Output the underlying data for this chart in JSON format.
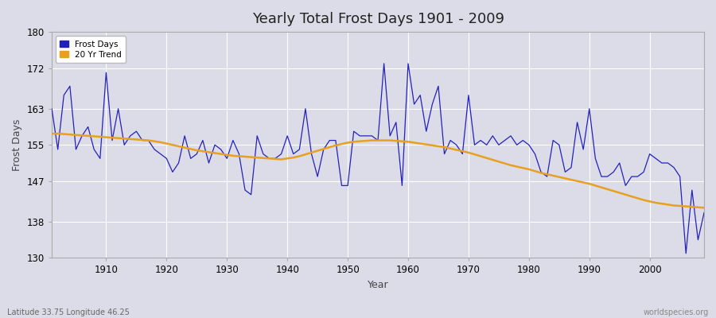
{
  "title": "Yearly Total Frost Days 1901 - 2009",
  "xlabel": "Year",
  "ylabel": "Frost Days",
  "legend_label_blue": "Frost Days",
  "legend_label_orange": "20 Yr Trend",
  "ylim": [
    130,
    180
  ],
  "yticks": [
    130,
    138,
    147,
    155,
    163,
    172,
    180
  ],
  "xlim": [
    1901,
    2009
  ],
  "footnote_left": "Latitude 33.75 Longitude 46.25",
  "footnote_right": "worldspecies.org",
  "background_color": "#dcdce8",
  "grid_color": "#ffffff",
  "line_color_blue": "#2222bb",
  "line_color_orange": "#e8a020",
  "years": [
    1901,
    1902,
    1903,
    1904,
    1905,
    1906,
    1907,
    1908,
    1909,
    1910,
    1911,
    1912,
    1913,
    1914,
    1915,
    1916,
    1917,
    1918,
    1919,
    1920,
    1921,
    1922,
    1923,
    1924,
    1925,
    1926,
    1927,
    1928,
    1929,
    1930,
    1931,
    1932,
    1933,
    1934,
    1935,
    1936,
    1937,
    1938,
    1939,
    1940,
    1941,
    1942,
    1943,
    1944,
    1945,
    1946,
    1947,
    1948,
    1949,
    1950,
    1951,
    1952,
    1953,
    1954,
    1955,
    1956,
    1957,
    1958,
    1959,
    1960,
    1961,
    1962,
    1963,
    1964,
    1965,
    1966,
    1967,
    1968,
    1969,
    1970,
    1971,
    1972,
    1973,
    1974,
    1975,
    1976,
    1977,
    1978,
    1979,
    1980,
    1981,
    1982,
    1983,
    1984,
    1985,
    1986,
    1987,
    1988,
    1989,
    1990,
    1991,
    1992,
    1993,
    1994,
    1995,
    1996,
    1997,
    1998,
    1999,
    2000,
    2001,
    2002,
    2003,
    2004,
    2005,
    2006,
    2007,
    2008,
    2009
  ],
  "frost_days": [
    163,
    154,
    166,
    168,
    154,
    157,
    159,
    154,
    152,
    171,
    156,
    163,
    155,
    157,
    158,
    156,
    156,
    154,
    153,
    152,
    149,
    151,
    157,
    152,
    153,
    156,
    151,
    155,
    154,
    152,
    156,
    153,
    145,
    144,
    157,
    153,
    152,
    152,
    153,
    157,
    153,
    154,
    163,
    153,
    148,
    154,
    156,
    156,
    146,
    146,
    158,
    157,
    157,
    157,
    156,
    173,
    157,
    160,
    146,
    173,
    164,
    166,
    158,
    164,
    168,
    153,
    156,
    155,
    153,
    166,
    155,
    156,
    155,
    157,
    155,
    156,
    157,
    155,
    156,
    155,
    153,
    149,
    148,
    156,
    155,
    149,
    150,
    160,
    154,
    163,
    152,
    148,
    148,
    149,
    151,
    146,
    148,
    148,
    149,
    153,
    152,
    151,
    151,
    150,
    148,
    131,
    145,
    134,
    140
  ],
  "trend_values": [
    157.5,
    157.5,
    157.4,
    157.3,
    157.2,
    157.1,
    157.0,
    156.9,
    156.8,
    156.7,
    156.6,
    156.5,
    156.4,
    156.3,
    156.2,
    156.1,
    156.0,
    155.8,
    155.6,
    155.3,
    155.0,
    154.7,
    154.4,
    154.1,
    153.8,
    153.6,
    153.4,
    153.2,
    153.0,
    152.8,
    152.6,
    152.5,
    152.4,
    152.3,
    152.2,
    152.1,
    152.0,
    151.9,
    151.8,
    152.0,
    152.2,
    152.5,
    152.9,
    153.3,
    153.7,
    154.1,
    154.5,
    154.9,
    155.2,
    155.5,
    155.7,
    155.8,
    155.9,
    156.0,
    156.0,
    156.0,
    156.0,
    155.9,
    155.8,
    155.7,
    155.5,
    155.3,
    155.1,
    154.9,
    154.7,
    154.5,
    154.2,
    153.9,
    153.6,
    153.3,
    152.9,
    152.5,
    152.1,
    151.7,
    151.3,
    150.9,
    150.5,
    150.2,
    149.9,
    149.6,
    149.2,
    148.8,
    148.5,
    148.2,
    147.9,
    147.6,
    147.3,
    147.0,
    146.7,
    146.4,
    146.0,
    145.6,
    145.2,
    144.8,
    144.4,
    144.0,
    143.6,
    143.2,
    142.8,
    142.5,
    142.2,
    142.0,
    141.8,
    141.6,
    141.5,
    141.4,
    141.3,
    141.2,
    141.1
  ]
}
